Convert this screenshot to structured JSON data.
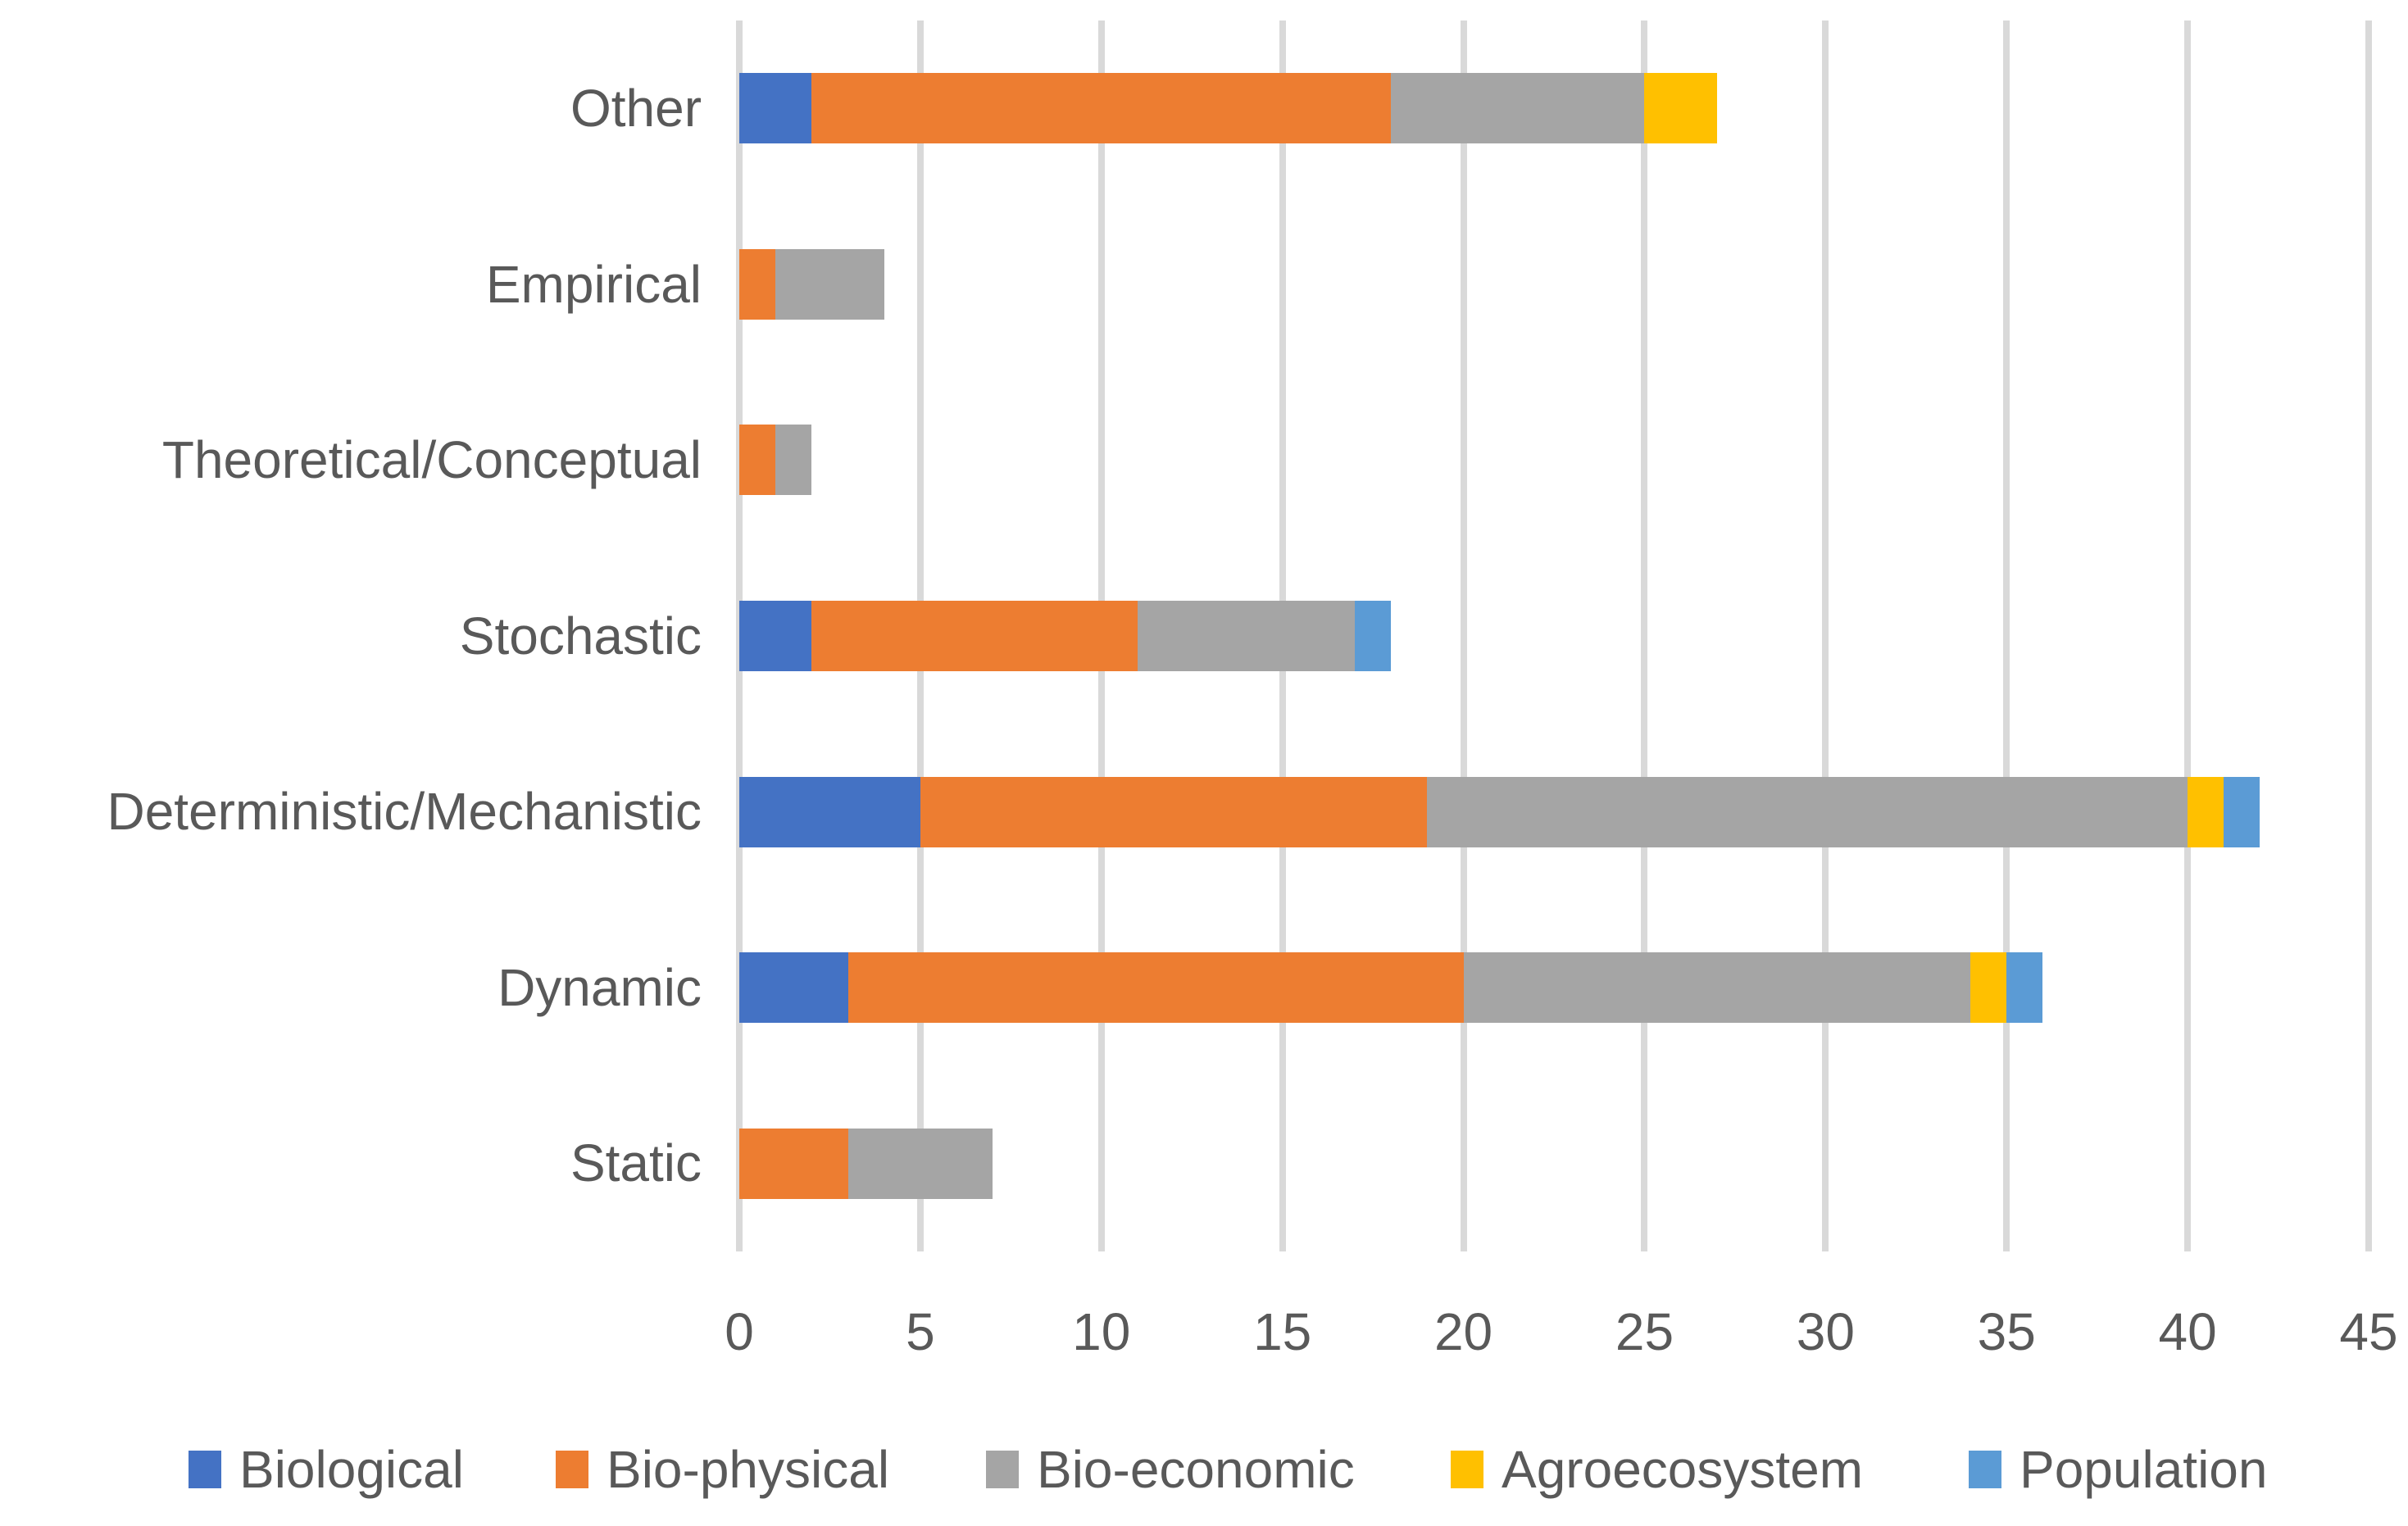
{
  "chart_data": {
    "type": "bar",
    "orientation": "horizontal",
    "stacked": true,
    "title": "",
    "xlabel": "",
    "ylabel": "",
    "categories": [
      "Other",
      "Empirical",
      "Theoretical/Conceptual",
      "Stochastic",
      "Deterministic/Mechanistic",
      "Dynamic",
      "Static"
    ],
    "series": [
      {
        "name": "Biological",
        "color": "#4472C4",
        "values": [
          2,
          0,
          0,
          2,
          5,
          3,
          0
        ]
      },
      {
        "name": "Bio-physical",
        "color": "#ED7D31",
        "values": [
          16,
          1,
          1,
          9,
          14,
          17,
          3
        ]
      },
      {
        "name": "Bio-economic",
        "color": "#A5A5A5",
        "values": [
          7,
          3,
          1,
          6,
          21,
          14,
          4
        ]
      },
      {
        "name": "Agroecosystem",
        "color": "#FFC000",
        "values": [
          2,
          0,
          0,
          0,
          1,
          1,
          0
        ]
      },
      {
        "name": "Population",
        "color": "#5B9BD5",
        "values": [
          0,
          0,
          0,
          1,
          1,
          1,
          0
        ]
      }
    ],
    "totals": [
      27,
      4,
      2,
      18,
      42,
      36,
      7
    ],
    "xlim": [
      0,
      45
    ],
    "xticks": [
      0,
      5,
      10,
      15,
      20,
      25,
      30,
      35,
      40,
      45
    ],
    "grid": true,
    "gridline_color": "#D9D9D9",
    "text_color": "#595959",
    "background": "#FFFFFF",
    "legend_position": "bottom"
  }
}
